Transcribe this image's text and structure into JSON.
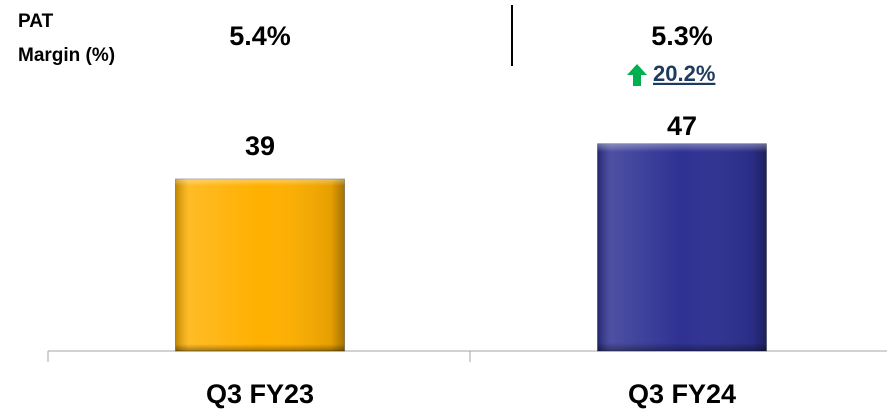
{
  "chart_data": {
    "type": "bar",
    "margin_label": [
      "PAT",
      "Margin (%)"
    ],
    "margin_values": [
      "5.4%",
      "5.3%"
    ],
    "growth_label": "20.2%",
    "categories": [
      "Q3 FY23",
      "Q3 FY24"
    ],
    "values": [
      39,
      47
    ],
    "colors": [
      "#ffb000",
      "#2e3192"
    ],
    "growth_color": "#00b050"
  }
}
